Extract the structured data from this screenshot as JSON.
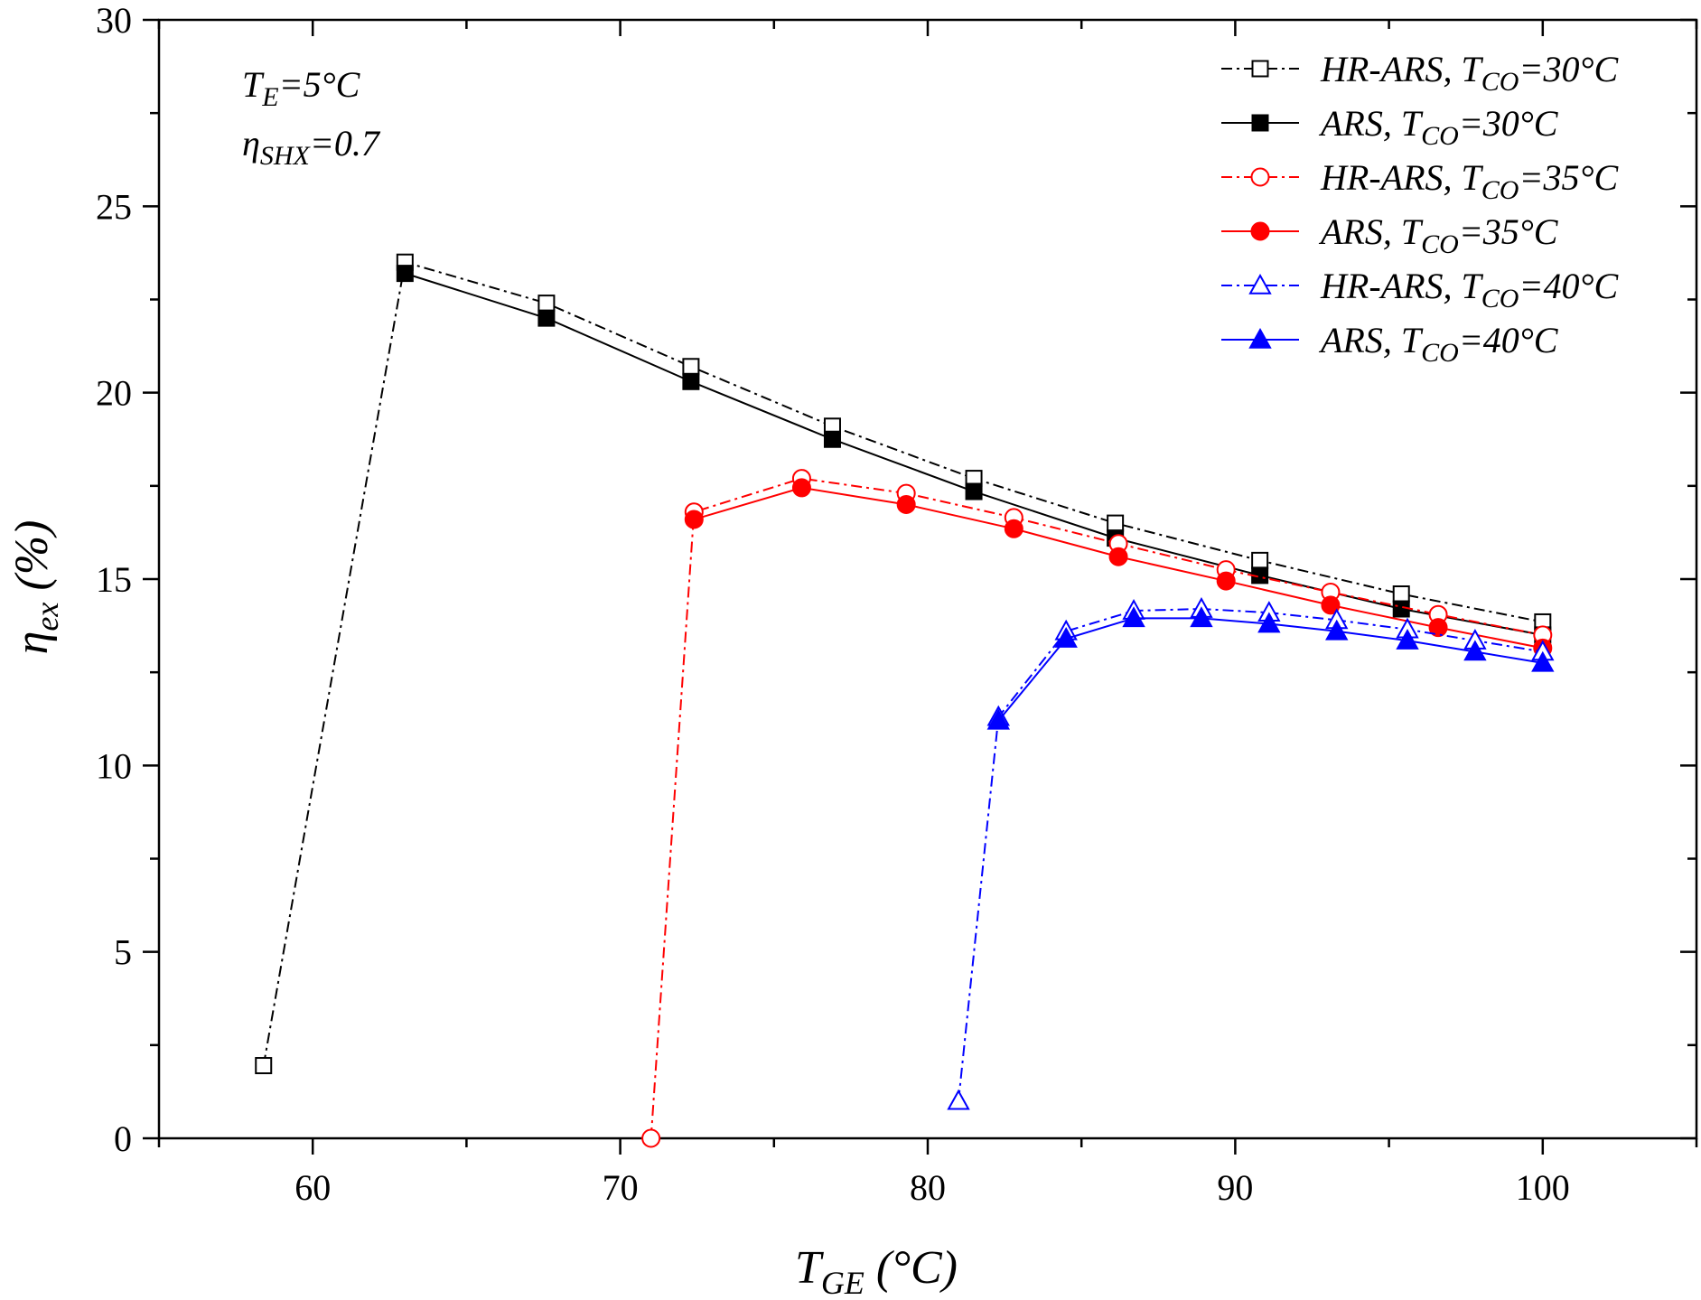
{
  "chart_data": {
    "type": "line",
    "title": "",
    "xlabel": {
      "main": "T",
      "sub": "GE",
      "unit": " (°C)"
    },
    "ylabel": {
      "main": "η",
      "sub": "ex",
      "unit": " (%)"
    },
    "xlim": [
      55,
      105
    ],
    "ylim": [
      0,
      30
    ],
    "xticks": [
      60,
      70,
      80,
      90,
      100
    ],
    "yticks": [
      0,
      5,
      10,
      15,
      20,
      25,
      30
    ],
    "grid": false,
    "legend_position": "top-right",
    "annotations": [
      {
        "id": "te",
        "main": "T",
        "sub": "E",
        "rest": "=5°C"
      },
      {
        "id": "shx",
        "main": "η",
        "sub": "SHX",
        "rest": "=0.7"
      }
    ],
    "series": [
      {
        "name": "HR-ARS, T_CO=30°C",
        "label_main": "HR-ARS, T",
        "label_sub": "CO",
        "label_rest": "=30°C",
        "color": "#000000",
        "dash": "dashdot",
        "marker": "square",
        "filled": false,
        "x": [
          58.4,
          63.0,
          67.6,
          72.3,
          76.9,
          81.5,
          86.1,
          90.8,
          95.4,
          100.0
        ],
        "y": [
          1.95,
          23.5,
          22.4,
          20.7,
          19.1,
          17.7,
          16.5,
          15.5,
          14.6,
          13.85
        ]
      },
      {
        "name": "ARS, T_CO=30°C",
        "label_main": "ARS, T",
        "label_sub": "CO",
        "label_rest": "=30°C",
        "color": "#000000",
        "dash": "solid",
        "marker": "square",
        "filled": true,
        "x": [
          63.0,
          67.6,
          72.3,
          76.9,
          81.5,
          86.1,
          90.8,
          95.4,
          100.0
        ],
        "y": [
          23.2,
          22.0,
          20.3,
          18.75,
          17.35,
          16.1,
          15.1,
          14.2,
          13.5
        ]
      },
      {
        "name": "HR-ARS, T_CO=35°C",
        "label_main": "HR-ARS, T",
        "label_sub": "CO",
        "label_rest": "=35°C",
        "color": "#ff0000",
        "dash": "dashdot",
        "marker": "circle",
        "filled": false,
        "x": [
          71.0,
          72.4,
          75.9,
          79.3,
          82.8,
          86.2,
          89.7,
          93.1,
          96.6,
          100.0
        ],
        "y": [
          0.0,
          16.8,
          17.7,
          17.3,
          16.65,
          15.95,
          15.25,
          14.65,
          14.05,
          13.5
        ]
      },
      {
        "name": "ARS, T_CO=35°C",
        "label_main": "ARS, T",
        "label_sub": "CO",
        "label_rest": "=35°C",
        "color": "#ff0000",
        "dash": "solid",
        "marker": "circle",
        "filled": true,
        "x": [
          72.4,
          75.9,
          79.3,
          82.8,
          86.2,
          89.7,
          93.1,
          96.6,
          100.0
        ],
        "y": [
          16.6,
          17.45,
          17.0,
          16.35,
          15.6,
          14.95,
          14.3,
          13.7,
          13.15
        ]
      },
      {
        "name": "HR-ARS, T_CO=40°C",
        "label_main": "HR-ARS, T",
        "label_sub": "CO",
        "label_rest": "=40°C",
        "color": "#0000ff",
        "dash": "dashdot",
        "marker": "triangle",
        "filled": false,
        "x": [
          81.0,
          82.3,
          84.5,
          86.7,
          88.9,
          91.1,
          93.3,
          95.6,
          97.8,
          100.0
        ],
        "y": [
          1.0,
          11.3,
          13.6,
          14.15,
          14.2,
          14.1,
          13.9,
          13.65,
          13.35,
          13.05
        ]
      },
      {
        "name": "ARS, T_CO=40°C",
        "label_main": "ARS, T",
        "label_sub": "CO",
        "label_rest": "=40°C",
        "color": "#0000ff",
        "dash": "solid",
        "marker": "triangle",
        "filled": true,
        "x": [
          82.3,
          84.5,
          86.7,
          88.9,
          91.1,
          93.3,
          95.6,
          97.8,
          100.0
        ],
        "y": [
          11.2,
          13.4,
          13.95,
          13.95,
          13.8,
          13.6,
          13.35,
          13.05,
          12.75
        ]
      }
    ]
  }
}
